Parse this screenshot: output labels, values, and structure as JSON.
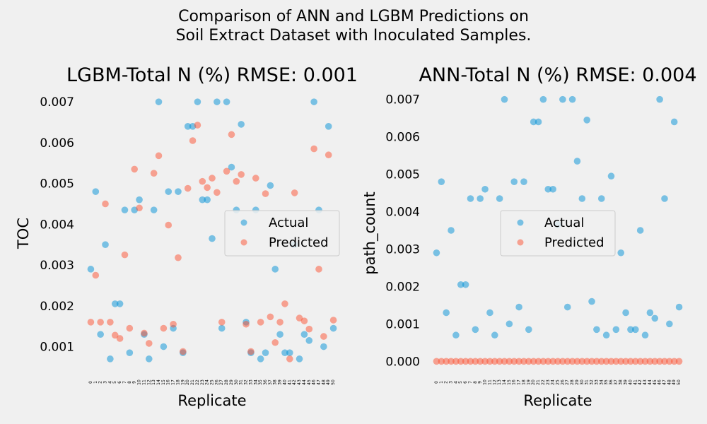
{
  "figure": {
    "suptitle_line1": "Comparison of ANN and LGBM Predictions on",
    "suptitle_line2": "Soil Extract Dataset with Inoculated Samples."
  },
  "chart_data": [
    {
      "type": "scatter",
      "title": "LGBM-Total N (%) RMSE: 0.001",
      "xlabel": "Replicate",
      "ylabel": "TOC",
      "xlim": [
        -0.5,
        50.5
      ],
      "ylim": [
        0.00042,
        0.00728
      ],
      "yticks": [
        0.001,
        0.002,
        0.003,
        0.004,
        0.005,
        0.006,
        0.007
      ],
      "ytick_labels": [
        "0.001",
        "0.002",
        "0.003",
        "0.004",
        "0.005",
        "0.006",
        "0.007"
      ],
      "x": [
        0,
        1,
        2,
        3,
        4,
        5,
        6,
        7,
        8,
        9,
        10,
        11,
        12,
        13,
        14,
        15,
        16,
        17,
        18,
        19,
        20,
        21,
        22,
        23,
        24,
        25,
        26,
        27,
        28,
        29,
        30,
        31,
        32,
        33,
        34,
        35,
        36,
        37,
        38,
        39,
        40,
        41,
        42,
        43,
        44,
        45,
        46,
        47,
        48,
        49,
        50
      ],
      "xtick_labels": [
        "0",
        "1",
        "2",
        "3",
        "4",
        "5",
        "6",
        "7",
        "8",
        "9",
        "10",
        "11",
        "12",
        "13",
        "14",
        "15",
        "16",
        "17",
        "18",
        "19",
        "20",
        "21",
        "22",
        "23",
        "24",
        "25",
        "26",
        "27",
        "28",
        "29",
        "30",
        "31",
        "32",
        "33",
        "34",
        "35",
        "36",
        "37",
        "38",
        "39",
        "40",
        "41",
        "42",
        "43",
        "44",
        "45",
        "46",
        "47",
        "48",
        "49",
        "50"
      ],
      "grid": false,
      "legend_position": "center-right",
      "series": [
        {
          "name": "Actual",
          "color": "#008fd5",
          "values": [
            0.0029,
            0.0048,
            0.0013,
            0.0035,
            0.0007,
            0.00205,
            0.00205,
            0.00435,
            0.00085,
            0.00435,
            0.0046,
            0.0013,
            0.0007,
            0.00435,
            0.007,
            0.001,
            0.0048,
            0.00145,
            0.0048,
            0.00085,
            0.0064,
            0.0064,
            0.007,
            0.0046,
            0.0046,
            0.00365,
            0.007,
            0.00145,
            0.007,
            0.0054,
            0.00435,
            0.00645,
            0.0016,
            0.00085,
            0.00435,
            0.0007,
            0.00085,
            0.00495,
            0.0029,
            0.0013,
            0.00085,
            0.00085,
            0.0035,
            0.0007,
            0.0013,
            0.00115,
            0.007,
            0.00435,
            0.001,
            0.0064,
            0.00145
          ]
        },
        {
          "name": "Predicted",
          "color": "#fc4f30",
          "values": [
            0.0016,
            0.00275,
            0.0016,
            0.0045,
            0.0016,
            0.00128,
            0.0012,
            0.00325,
            0.00145,
            0.00535,
            0.0044,
            0.00133,
            0.00108,
            0.00525,
            0.00568,
            0.00145,
            0.00398,
            0.00155,
            0.00318,
            0.00088,
            0.00488,
            0.00605,
            0.00643,
            0.00505,
            0.0049,
            0.00513,
            0.00478,
            0.0016,
            0.0053,
            0.0062,
            0.00505,
            0.00522,
            0.00155,
            0.00088,
            0.00513,
            0.0016,
            0.00475,
            0.00173,
            0.0011,
            0.0016,
            0.00205,
            0.0007,
            0.00477,
            0.0017,
            0.00163,
            0.00143,
            0.00585,
            0.0029,
            0.00125,
            0.0057,
            0.00165
          ]
        }
      ]
    },
    {
      "type": "scatter",
      "title": "ANN-Total N (%) RMSE: 0.004",
      "xlabel": "Replicate",
      "ylabel": "path_count",
      "xlim": [
        -0.5,
        50.5
      ],
      "ylim": [
        -0.00024,
        0.00724
      ],
      "yticks": [
        0.0,
        0.001,
        0.002,
        0.003,
        0.004,
        0.005,
        0.006,
        0.007
      ],
      "ytick_labels": [
        "0.000",
        "0.001",
        "0.002",
        "0.003",
        "0.004",
        "0.005",
        "0.006",
        "0.007"
      ],
      "x": [
        0,
        1,
        2,
        3,
        4,
        5,
        6,
        7,
        8,
        9,
        10,
        11,
        12,
        13,
        14,
        15,
        16,
        17,
        18,
        19,
        20,
        21,
        22,
        23,
        24,
        25,
        26,
        27,
        28,
        29,
        30,
        31,
        32,
        33,
        34,
        35,
        36,
        37,
        38,
        39,
        40,
        41,
        42,
        43,
        44,
        45,
        46,
        47,
        48,
        49,
        50
      ],
      "xtick_labels": [
        "0",
        "1",
        "2",
        "3",
        "4",
        "5",
        "6",
        "7",
        "8",
        "9",
        "10",
        "11",
        "12",
        "13",
        "14",
        "15",
        "16",
        "17",
        "18",
        "19",
        "20",
        "21",
        "22",
        "23",
        "24",
        "25",
        "26",
        "27",
        "28",
        "29",
        "30",
        "31",
        "32",
        "33",
        "34",
        "35",
        "36",
        "37",
        "38",
        "39",
        "40",
        "41",
        "42",
        "43",
        "44",
        "45",
        "46",
        "47",
        "48",
        "49",
        "50"
      ],
      "grid": false,
      "legend_position": "center",
      "series": [
        {
          "name": "Actual",
          "color": "#008fd5",
          "values": [
            0.0029,
            0.0048,
            0.0013,
            0.0035,
            0.0007,
            0.00205,
            0.00205,
            0.00435,
            0.00085,
            0.00435,
            0.0046,
            0.0013,
            0.0007,
            0.00435,
            0.007,
            0.001,
            0.0048,
            0.00145,
            0.0048,
            0.00085,
            0.0064,
            0.0064,
            0.007,
            0.0046,
            0.0046,
            0.00365,
            0.007,
            0.00145,
            0.007,
            0.00535,
            0.00435,
            0.00645,
            0.0016,
            0.00085,
            0.00435,
            0.0007,
            0.00495,
            0.00085,
            0.0029,
            0.0013,
            0.00085,
            0.00085,
            0.0035,
            0.0007,
            0.0013,
            0.00115,
            0.007,
            0.00435,
            0.001,
            0.0064,
            0.00145
          ]
        },
        {
          "name": "Predicted",
          "color": "#fc4f30",
          "values": [
            0,
            0,
            0,
            0,
            0,
            0,
            0,
            0,
            0,
            0,
            0,
            0,
            0,
            0,
            0,
            0,
            0,
            0,
            0,
            0,
            0,
            0,
            0,
            0,
            0,
            0,
            0,
            0,
            0,
            0,
            0,
            0,
            0,
            0,
            0,
            0,
            0,
            0,
            0,
            0,
            0,
            0,
            0,
            0,
            0,
            0,
            0,
            0,
            0,
            0,
            0
          ]
        }
      ]
    }
  ]
}
